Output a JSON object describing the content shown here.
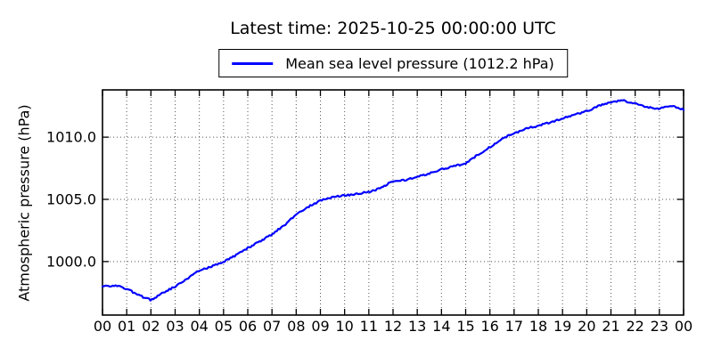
{
  "title": "Latest time: 2025-10-25 00:00:00 UTC",
  "legend": {
    "label": "Mean sea level pressure (1012.2 hPa)",
    "line_color": "#0000ff",
    "position": "upper center"
  },
  "colors": {
    "line": "#0000ff",
    "grid": "#555555",
    "axis": "#000000",
    "background": "#ffffff"
  },
  "chart_data": {
    "type": "line",
    "title": "Latest time: 2025-10-25 00:00:00 UTC",
    "xlabel": "",
    "ylabel": "Atmospheric pressure (hPa)",
    "xlim": [
      0,
      24
    ],
    "ylim": [
      995.7,
      1013.8
    ],
    "grid": true,
    "x_ticks": {
      "positions": [
        0,
        1,
        2,
        3,
        4,
        5,
        6,
        7,
        8,
        9,
        10,
        11,
        12,
        13,
        14,
        15,
        16,
        17,
        18,
        19,
        20,
        21,
        22,
        23,
        24
      ],
      "labels": [
        "00",
        "01",
        "02",
        "03",
        "04",
        "05",
        "06",
        "07",
        "08",
        "09",
        "10",
        "11",
        "12",
        "13",
        "14",
        "15",
        "16",
        "17",
        "18",
        "19",
        "20",
        "21",
        "22",
        "23",
        "00"
      ]
    },
    "y_ticks": {
      "positions": [
        1000.0,
        1005.0,
        1010.0
      ],
      "labels": [
        "1000.0",
        "1005.0",
        "1010.0"
      ]
    },
    "series": [
      {
        "name": "Mean sea level pressure",
        "unit": "hPa",
        "color": "#0000ff",
        "latest_value_hpa": 1012.2,
        "x": [
          0,
          0.5,
          1,
          1.5,
          2,
          2.5,
          3,
          3.5,
          4,
          4.5,
          5,
          5.5,
          6,
          6.5,
          7,
          7.5,
          8,
          8.5,
          9,
          9.5,
          10,
          10.5,
          11,
          11.5,
          12,
          12.5,
          13,
          13.5,
          14,
          14.5,
          15,
          15.5,
          16,
          16.5,
          17,
          17.5,
          18,
          18.5,
          19,
          19.5,
          20,
          20.5,
          21,
          21.5,
          22,
          22.5,
          23,
          23.5,
          24
        ],
        "values": [
          998.0,
          998.1,
          997.8,
          997.3,
          996.9,
          997.5,
          998.0,
          998.6,
          999.3,
          999.6,
          1000.0,
          1000.5,
          1001.1,
          1001.6,
          1002.2,
          1002.9,
          1003.8,
          1004.4,
          1004.9,
          1005.2,
          1005.3,
          1005.45,
          1005.6,
          1005.9,
          1006.5,
          1006.55,
          1006.8,
          1007.1,
          1007.4,
          1007.65,
          1007.9,
          1008.6,
          1009.2,
          1009.9,
          1010.3,
          1010.7,
          1010.9,
          1011.2,
          1011.5,
          1011.8,
          1012.1,
          1012.5,
          1012.8,
          1012.95,
          1012.7,
          1012.4,
          1012.3,
          1012.5,
          1012.2
        ]
      }
    ]
  }
}
